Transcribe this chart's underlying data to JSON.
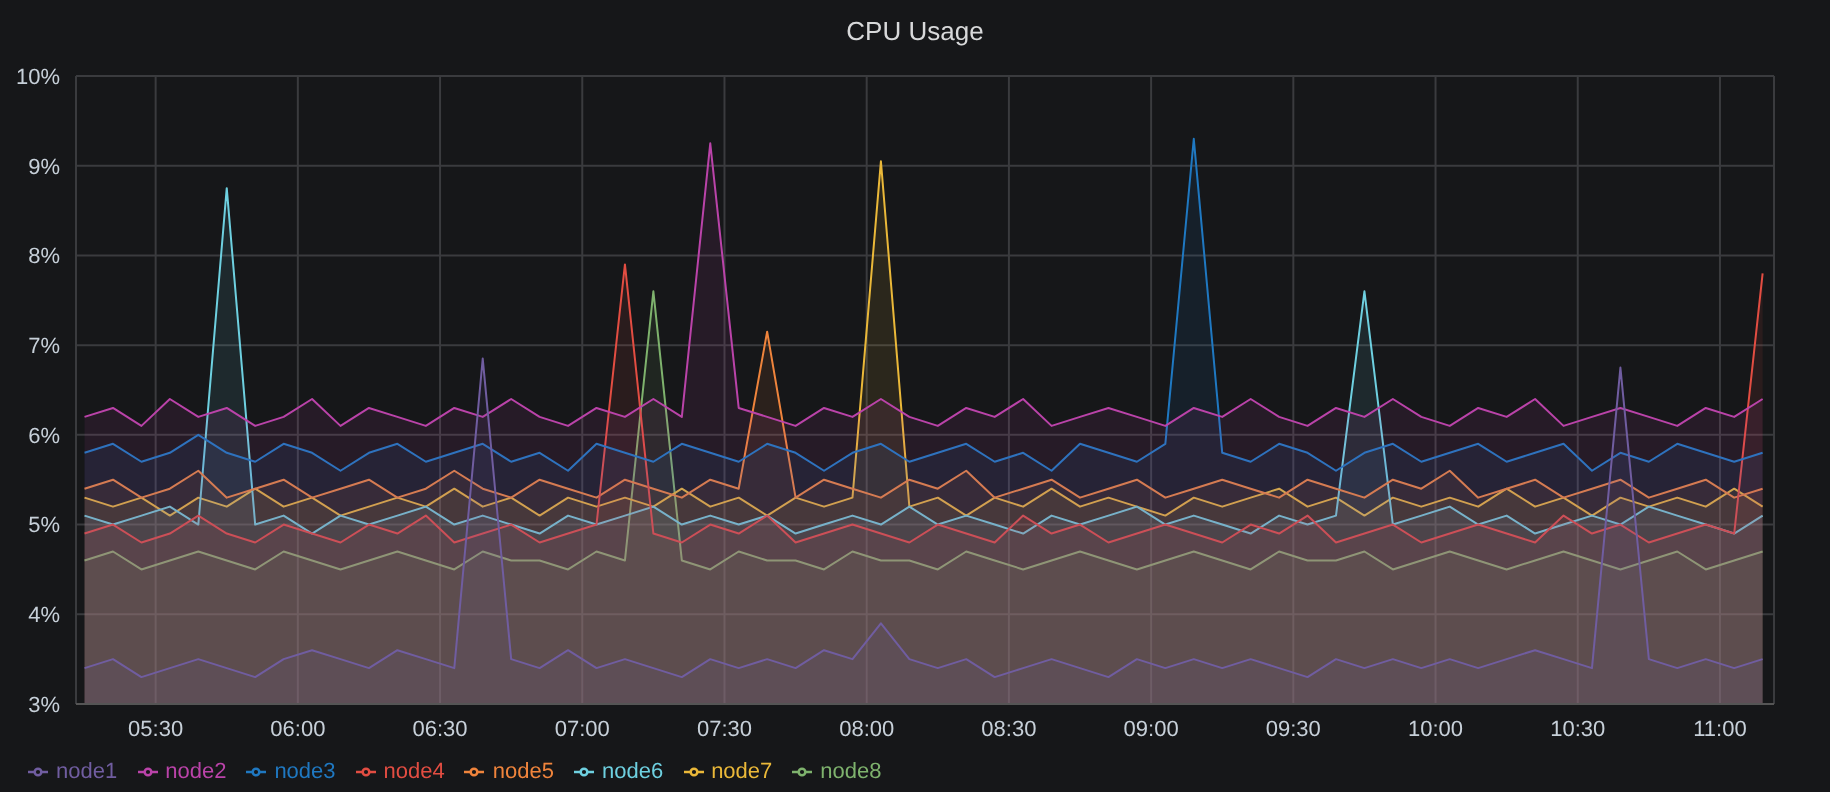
{
  "chart_data": {
    "type": "area",
    "title": "CPU Usage",
    "x": [
      5.25,
      5.35,
      5.45,
      5.55,
      5.65,
      5.75,
      5.85,
      5.95,
      6.05,
      6.15,
      6.25,
      6.35,
      6.45,
      6.55,
      6.65,
      6.75,
      6.85,
      6.95,
      7.05,
      7.15,
      7.25,
      7.35,
      7.45,
      7.55,
      7.65,
      7.75,
      7.85,
      7.95,
      8.05,
      8.15,
      8.25,
      8.35,
      8.45,
      8.55,
      8.65,
      8.75,
      8.85,
      8.95,
      9.05,
      9.15,
      9.25,
      9.35,
      9.45,
      9.55,
      9.65,
      9.75,
      9.85,
      9.95,
      10.05,
      10.15,
      10.25,
      10.35,
      10.45,
      10.55,
      10.65,
      10.75,
      10.85,
      10.95,
      11.05,
      11.15
    ],
    "xlim": [
      5.22,
      11.19
    ],
    "xticks": [
      {
        "value": 5.5,
        "label": "05:30"
      },
      {
        "value": 6,
        "label": "06:00"
      },
      {
        "value": 6.5,
        "label": "06:30"
      },
      {
        "value": 7,
        "label": "07:00"
      },
      {
        "value": 7.5,
        "label": "07:30"
      },
      {
        "value": 8,
        "label": "08:00"
      },
      {
        "value": 8.5,
        "label": "08:30"
      },
      {
        "value": 9,
        "label": "09:00"
      },
      {
        "value": 9.5,
        "label": "09:30"
      },
      {
        "value": 10,
        "label": "10:00"
      },
      {
        "value": 10.5,
        "label": "10:30"
      },
      {
        "value": 11,
        "label": "11:00"
      }
    ],
    "ylim": [
      3,
      10
    ],
    "yticks": [
      {
        "value": 3,
        "label": "3%"
      },
      {
        "value": 4,
        "label": "4%"
      },
      {
        "value": 5,
        "label": "5%"
      },
      {
        "value": 6,
        "label": "6%"
      },
      {
        "value": 7,
        "label": "7%"
      },
      {
        "value": 8,
        "label": "8%"
      },
      {
        "value": 9,
        "label": "9%"
      },
      {
        "value": 10,
        "label": "10%"
      }
    ],
    "grid": true,
    "legend": "bottom left",
    "series": [
      {
        "name": "node8",
        "color": "#7eb26d",
        "values": [
          4.6,
          4.7,
          4.5,
          4.6,
          4.7,
          4.6,
          4.5,
          4.7,
          4.6,
          4.5,
          4.6,
          4.7,
          4.6,
          4.5,
          4.7,
          4.6,
          4.6,
          4.5,
          4.7,
          4.6,
          7.6,
          4.6,
          4.5,
          4.7,
          4.6,
          4.6,
          4.5,
          4.7,
          4.6,
          4.6,
          4.5,
          4.7,
          4.6,
          4.5,
          4.6,
          4.7,
          4.6,
          4.5,
          4.6,
          4.7,
          4.6,
          4.5,
          4.7,
          4.6,
          4.6,
          4.7,
          4.5,
          4.6,
          4.7,
          4.6,
          4.5,
          4.6,
          4.7,
          4.6,
          4.5,
          4.6,
          4.7,
          4.5,
          4.6,
          4.7
        ]
      },
      {
        "name": "node7",
        "color": "#eab839",
        "values": [
          5.3,
          5.2,
          5.3,
          5.1,
          5.3,
          5.2,
          5.4,
          5.2,
          5.3,
          5.1,
          5.2,
          5.3,
          5.2,
          5.4,
          5.2,
          5.3,
          5.1,
          5.3,
          5.2,
          5.3,
          5.2,
          5.4,
          5.2,
          5.3,
          5.1,
          5.3,
          5.2,
          5.3,
          9.05,
          5.2,
          5.3,
          5.1,
          5.3,
          5.2,
          5.4,
          5.2,
          5.3,
          5.2,
          5.1,
          5.3,
          5.2,
          5.3,
          5.4,
          5.2,
          5.3,
          5.1,
          5.3,
          5.2,
          5.3,
          5.2,
          5.4,
          5.2,
          5.3,
          5.1,
          5.3,
          5.2,
          5.3,
          5.2,
          5.4,
          5.2
        ]
      },
      {
        "name": "node6",
        "color": "#6ed0e0",
        "values": [
          5.1,
          5.0,
          5.1,
          5.2,
          5.0,
          8.75,
          5.0,
          5.1,
          4.9,
          5.1,
          5.0,
          5.1,
          5.2,
          5.0,
          5.1,
          5.0,
          4.9,
          5.1,
          5.0,
          5.1,
          5.2,
          5.0,
          5.1,
          5.0,
          5.1,
          4.9,
          5.0,
          5.1,
          5.0,
          5.2,
          5.0,
          5.1,
          5.0,
          4.9,
          5.1,
          5.0,
          5.1,
          5.2,
          5.0,
          5.1,
          5.0,
          4.9,
          5.1,
          5.0,
          5.1,
          7.6,
          5.0,
          5.1,
          5.2,
          5.0,
          5.1,
          4.9,
          5.0,
          5.1,
          5.0,
          5.2,
          5.1,
          5.0,
          4.9,
          5.1
        ]
      },
      {
        "name": "node5",
        "color": "#ef843c",
        "values": [
          5.4,
          5.5,
          5.3,
          5.4,
          5.6,
          5.3,
          5.4,
          5.5,
          5.3,
          5.4,
          5.5,
          5.3,
          5.4,
          5.6,
          5.4,
          5.3,
          5.5,
          5.4,
          5.3,
          5.5,
          5.4,
          5.3,
          5.5,
          5.4,
          7.15,
          5.3,
          5.5,
          5.4,
          5.3,
          5.5,
          5.4,
          5.6,
          5.3,
          5.4,
          5.5,
          5.3,
          5.4,
          5.5,
          5.3,
          5.4,
          5.5,
          5.4,
          5.3,
          5.5,
          5.4,
          5.3,
          5.5,
          5.4,
          5.6,
          5.3,
          5.4,
          5.5,
          5.3,
          5.4,
          5.5,
          5.3,
          5.4,
          5.5,
          5.3,
          5.4
        ]
      },
      {
        "name": "node4",
        "color": "#e24d42",
        "values": [
          4.9,
          5.0,
          4.8,
          4.9,
          5.1,
          4.9,
          4.8,
          5.0,
          4.9,
          4.8,
          5.0,
          4.9,
          5.1,
          4.8,
          4.9,
          5.0,
          4.8,
          4.9,
          5.0,
          7.9,
          4.9,
          4.8,
          5.0,
          4.9,
          5.1,
          4.8,
          4.9,
          5.0,
          4.9,
          4.8,
          5.0,
          4.9,
          4.8,
          5.1,
          4.9,
          5.0,
          4.8,
          4.9,
          5.0,
          4.9,
          4.8,
          5.0,
          4.9,
          5.1,
          4.8,
          4.9,
          5.0,
          4.8,
          4.9,
          5.0,
          4.9,
          4.8,
          5.1,
          4.9,
          5.0,
          4.8,
          4.9,
          5.0,
          4.9,
          7.8
        ]
      },
      {
        "name": "node3",
        "color": "#1f78c1",
        "values": [
          5.8,
          5.9,
          5.7,
          5.8,
          6.0,
          5.8,
          5.7,
          5.9,
          5.8,
          5.6,
          5.8,
          5.9,
          5.7,
          5.8,
          5.9,
          5.7,
          5.8,
          5.6,
          5.9,
          5.8,
          5.7,
          5.9,
          5.8,
          5.7,
          5.9,
          5.8,
          5.6,
          5.8,
          5.9,
          5.7,
          5.8,
          5.9,
          5.7,
          5.8,
          5.6,
          5.9,
          5.8,
          5.7,
          5.9,
          9.3,
          5.8,
          5.7,
          5.9,
          5.8,
          5.6,
          5.8,
          5.9,
          5.7,
          5.8,
          5.9,
          5.7,
          5.8,
          5.9,
          5.6,
          5.8,
          5.7,
          5.9,
          5.8,
          5.7,
          5.8
        ]
      },
      {
        "name": "node2",
        "color": "#ba43a9",
        "values": [
          6.2,
          6.3,
          6.1,
          6.4,
          6.2,
          6.3,
          6.1,
          6.2,
          6.4,
          6.1,
          6.3,
          6.2,
          6.1,
          6.3,
          6.2,
          6.4,
          6.2,
          6.1,
          6.3,
          6.2,
          6.4,
          6.2,
          9.25,
          6.3,
          6.2,
          6.1,
          6.3,
          6.2,
          6.4,
          6.2,
          6.1,
          6.3,
          6.2,
          6.4,
          6.1,
          6.2,
          6.3,
          6.2,
          6.1,
          6.3,
          6.2,
          6.4,
          6.2,
          6.1,
          6.3,
          6.2,
          6.4,
          6.2,
          6.1,
          6.3,
          6.2,
          6.4,
          6.1,
          6.2,
          6.3,
          6.2,
          6.1,
          6.3,
          6.2,
          6.4
        ]
      },
      {
        "name": "node1",
        "color": "#705da0",
        "values": [
          3.4,
          3.5,
          3.3,
          3.4,
          3.5,
          3.4,
          3.3,
          3.5,
          3.6,
          3.5,
          3.4,
          3.6,
          3.5,
          3.4,
          6.85,
          3.5,
          3.4,
          3.6,
          3.4,
          3.5,
          3.4,
          3.3,
          3.5,
          3.4,
          3.5,
          3.4,
          3.6,
          3.5,
          3.9,
          3.5,
          3.4,
          3.5,
          3.3,
          3.4,
          3.5,
          3.4,
          3.3,
          3.5,
          3.4,
          3.5,
          3.4,
          3.5,
          3.4,
          3.3,
          3.5,
          3.4,
          3.5,
          3.4,
          3.5,
          3.4,
          3.5,
          3.6,
          3.5,
          3.4,
          6.75,
          3.5,
          3.4,
          3.5,
          3.4,
          3.5
        ]
      }
    ]
  }
}
